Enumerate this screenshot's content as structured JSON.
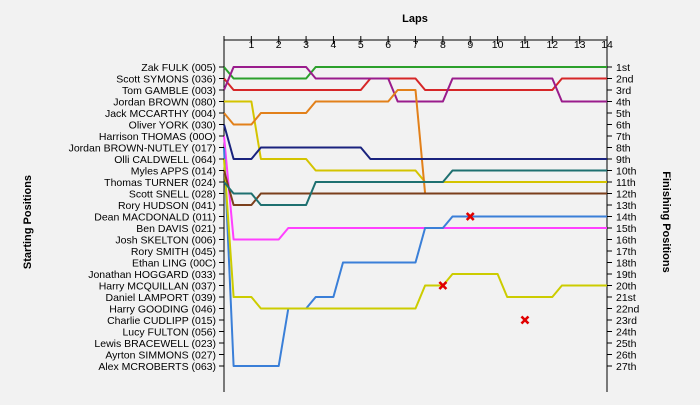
{
  "chart_data": {
    "type": "line",
    "title": "",
    "xlabel": "Laps",
    "ylabel_left": "Starting Positions",
    "ylabel_right": "Finishing Positions",
    "laps": [
      1,
      2,
      3,
      4,
      5,
      6,
      7,
      8,
      9,
      10,
      11,
      12,
      13,
      14
    ],
    "drivers": [
      "Zak FULK (005)",
      "Scott SYMONS (036)",
      "Tom GAMBLE (003)",
      "Jordan BROWN (080)",
      "Jack MCCARTHY (004)",
      "Oliver YORK (030)",
      "Harrison THOMAS (00O)",
      "Jordan BROWN-NUTLEY (017)",
      "Olli CALDWELL (064)",
      "Myles APPS (014)",
      "Thomas TURNER (024)",
      "Scott SNELL (028)",
      "Rory HUDSON (041)",
      "Dean MACDONALD (011)",
      "Ben DAVIS (021)",
      "Josh SKELTON (006)",
      "Rory SMITH (045)",
      "Ethan LING (00C)",
      "Jonathan HOGGARD (033)",
      "Harry MCQUILLAN (037)",
      "Daniel LAMPORT (039)",
      "Harry GOODING (046)",
      "Charlie CUDLIPP (015)",
      "Lucy FULTON (056)",
      "Lewis BRACEWELL (023)",
      "Ayrton SIMMONS (027)",
      "Alex MCROBERTS (063)"
    ],
    "finish_labels": [
      "1st",
      "2nd",
      "3rd",
      "4th",
      "5th",
      "6th",
      "7th",
      "8th",
      "9th",
      "10th",
      "11th",
      "12th",
      "13th",
      "14th",
      "15th",
      "16th",
      "17th",
      "18th",
      "19th",
      "20th",
      "21st",
      "22nd",
      "23rd",
      "24th",
      "25th",
      "26th",
      "27th"
    ],
    "series": [
      {
        "color": "#2ca02c",
        "positions": [
          1,
          2,
          2,
          2,
          1,
          1,
          1,
          1,
          1,
          1,
          1,
          1,
          1,
          1,
          1
        ]
      },
      {
        "color": "#d62728",
        "positions": [
          2,
          3,
          3,
          3,
          3,
          3,
          2,
          2,
          3,
          3,
          3,
          3,
          3,
          2,
          2
        ]
      },
      {
        "color": "#9a1c8c",
        "positions": [
          3,
          1,
          1,
          1,
          2,
          2,
          2,
          4,
          4,
          2,
          2,
          2,
          2,
          4,
          4
        ]
      },
      {
        "color": "#d4c400",
        "positions": [
          4,
          4,
          9,
          9,
          10,
          10,
          10,
          10,
          11,
          11,
          11,
          11,
          11,
          11,
          11
        ]
      },
      {
        "color": "#e2801a",
        "positions": [
          5,
          6,
          5,
          5,
          4,
          4,
          4,
          3,
          12,
          12,
          12,
          12,
          12,
          12,
          12
        ]
      },
      {
        "color": "#1a237e",
        "positions": [
          6,
          9,
          8,
          8,
          8,
          8,
          9,
          9,
          9,
          9,
          9,
          9,
          9,
          9,
          9
        ]
      },
      {
        "color": "#ff40ff",
        "positions": [
          7,
          16,
          16,
          15,
          15,
          15,
          15,
          15,
          15,
          15,
          15,
          15,
          15,
          15,
          15
        ]
      },
      {
        "color": "#3a7fd8",
        "positions": [
          8,
          27,
          27,
          22,
          21,
          18,
          18,
          18,
          15,
          14,
          14,
          14,
          14,
          14,
          14
        ]
      },
      {
        "color": "#cccc00",
        "positions": [
          9,
          21,
          22,
          22,
          22,
          22,
          22,
          22,
          20,
          19,
          19,
          21,
          21,
          20,
          20
        ]
      },
      {
        "color": "#7b3f1c",
        "positions": [
          10,
          13,
          12,
          12,
          12,
          12,
          12,
          12,
          12,
          12,
          12,
          12,
          12,
          12,
          12
        ]
      },
      {
        "color": "#1e7070",
        "positions": [
          11,
          12,
          13,
          13,
          11,
          11,
          11,
          11,
          11,
          10,
          10,
          10,
          10,
          10,
          10
        ]
      }
    ],
    "retirements": [
      {
        "lap": 8,
        "position": 20
      },
      {
        "lap": 9,
        "position": 14
      },
      {
        "lap": 11,
        "position": 23
      }
    ],
    "grid": false,
    "legend": "none"
  }
}
